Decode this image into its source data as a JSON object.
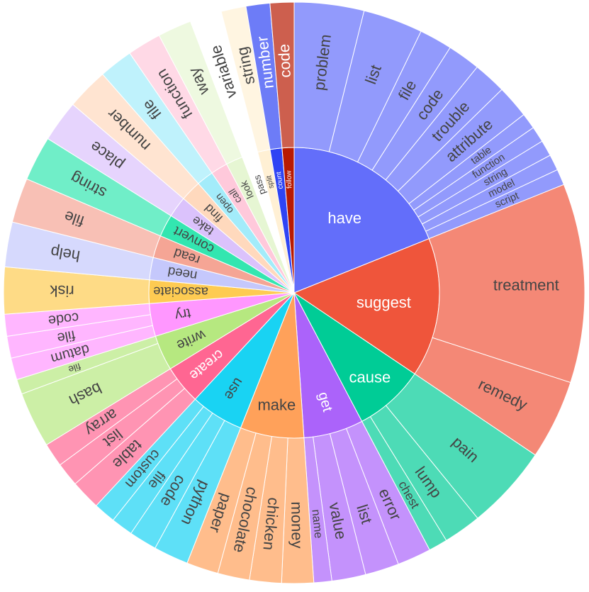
{
  "chart_data": {
    "type": "sunburst",
    "title": "",
    "value_unit": "count",
    "verbs": [
      {
        "label": "have",
        "color": "#636efa",
        "children": [
          {
            "label": "problem",
            "value": 7
          },
          {
            "label": "list",
            "value": 6
          },
          {
            "label": "file",
            "value": 3.3
          },
          {
            "label": "code",
            "value": 3.3
          },
          {
            "label": "trouble",
            "value": 3.3
          },
          {
            "label": "attribute",
            "value": 3.3
          },
          {
            "label": "table",
            "value": 1.6
          },
          {
            "label": "function",
            "value": 1.6
          },
          {
            "label": "string",
            "value": 1.6
          },
          {
            "label": "model",
            "value": 1.6
          },
          {
            "label": "script",
            "value": 1.6
          }
        ]
      },
      {
        "label": "suggest",
        "color": "#ef553b",
        "children": [
          {
            "label": "treatment",
            "value": 20
          },
          {
            "label": "remedy",
            "value": 8
          }
        ]
      },
      {
        "label": "cause",
        "color": "#00cc96",
        "children": [
          {
            "label": "pain",
            "value": 8.5
          },
          {
            "label": "lump",
            "value": 3.8
          },
          {
            "label": "chest",
            "value": 1.9
          }
        ]
      },
      {
        "label": "get",
        "color": "#ab63fa",
        "children": [
          {
            "label": "error",
            "value": 3.4
          },
          {
            "label": "list",
            "value": 3.4
          },
          {
            "label": "value",
            "value": 3.4
          },
          {
            "label": "name",
            "value": 1.8
          }
        ]
      },
      {
        "label": "make",
        "color": "#ffa15a",
        "children": [
          {
            "label": "money",
            "value": 3.2
          },
          {
            "label": "chicken",
            "value": 3.2
          },
          {
            "label": "chocolate",
            "value": 3.2
          },
          {
            "label": "paper",
            "value": 3.2
          }
        ]
      },
      {
        "label": "use",
        "color": "#19d3f3",
        "children": [
          {
            "label": "python",
            "value": 3.5
          },
          {
            "label": "code",
            "value": 2.8
          },
          {
            "label": "file",
            "value": 2.2
          },
          {
            "label": "custom",
            "value": 2.2
          }
        ]
      },
      {
        "label": "create",
        "color": "#ff6692",
        "children": [
          {
            "label": "table",
            "value": 3
          },
          {
            "label": "list",
            "value": 2.4
          },
          {
            "label": "array",
            "value": 2.4
          }
        ]
      },
      {
        "label": "write",
        "color": "#b6e880",
        "children": [
          {
            "label": "bash",
            "value": 5.6
          },
          {
            "label": "file",
            "value": 1.5
          }
        ]
      },
      {
        "label": "try",
        "color": "#ff97ff",
        "children": [
          {
            "label": "datum",
            "value": 2.2
          },
          {
            "label": "file",
            "value": 2.2
          },
          {
            "label": "code",
            "value": 2.2
          }
        ]
      },
      {
        "label": "associate",
        "color": "#fecb52",
        "children": [
          {
            "label": "risk",
            "value": 4.7
          }
        ]
      },
      {
        "label": "need",
        "color": "#c5c8fc",
        "children": [
          {
            "label": "help",
            "value": 4.5
          }
        ]
      },
      {
        "label": "read",
        "color": "#f5a595",
        "children": [
          {
            "label": "file",
            "value": 4.5
          }
        ]
      },
      {
        "label": "convert",
        "color": "#33e6b0",
        "children": [
          {
            "label": "string",
            "value": 4.5
          }
        ]
      },
      {
        "label": "take",
        "color": "#dbc2fc",
        "children": [
          {
            "label": "place",
            "value": 4.2
          }
        ]
      },
      {
        "label": "find",
        "color": "#ffd9bd",
        "children": [
          {
            "label": "number",
            "value": 4.2
          }
        ]
      },
      {
        "label": "open",
        "color": "#a3ecfa",
        "children": [
          {
            "label": "file",
            "value": 3.4
          }
        ]
      },
      {
        "label": "call",
        "color": "#ffc9db",
        "children": [
          {
            "label": "function",
            "value": 3.4
          }
        ]
      },
      {
        "label": "look",
        "color": "#e6f6d3",
        "children": [
          {
            "label": "way",
            "value": 3.4
          }
        ]
      },
      {
        "label": "pass",
        "color": "#ffffff",
        "children": [
          {
            "label": "variable",
            "value": 3.2
          }
        ]
      },
      {
        "label": "split",
        "color": "#fff0d4",
        "children": [
          {
            "label": "string",
            "value": 2.5
          }
        ]
      },
      {
        "label": "count",
        "color": "#2f44f4",
        "children": [
          {
            "label": "number",
            "value": 2.4
          }
        ]
      },
      {
        "label": "follow",
        "color": "#b81a02",
        "children": [
          {
            "label": "code",
            "value": 2.4
          }
        ]
      }
    ]
  }
}
